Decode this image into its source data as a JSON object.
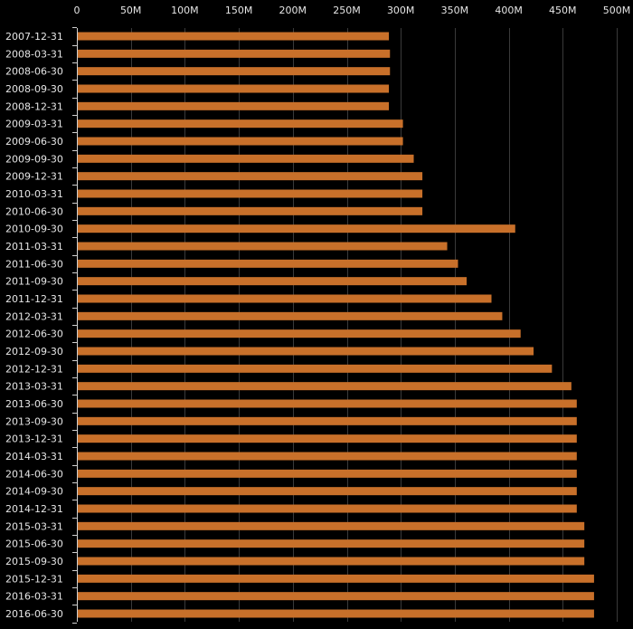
{
  "chart_data": {
    "type": "bar",
    "orientation": "horizontal",
    "title": "",
    "xlabel": "",
    "ylabel": "",
    "x_axis_position": "top",
    "grid": true,
    "legend": "none",
    "bar_color": "#c8702a",
    "background_color": "#000000",
    "text_color": "#e6e6e6",
    "xlim": [
      0,
      500000000
    ],
    "x_ticks": [
      0,
      50000000,
      100000000,
      150000000,
      200000000,
      250000000,
      300000000,
      350000000,
      400000000,
      450000000,
      500000000
    ],
    "x_tick_labels": [
      "0",
      "50M",
      "100M",
      "150M",
      "200M",
      "250M",
      "300M",
      "350M",
      "400M",
      "450M",
      "500M"
    ],
    "categories": [
      "2007-12-31",
      "2008-03-31",
      "2008-06-30",
      "2008-09-30",
      "2008-12-31",
      "2009-03-31",
      "2009-06-30",
      "2009-09-30",
      "2009-12-31",
      "2010-03-31",
      "2010-06-30",
      "2010-09-30",
      "2011-03-31",
      "2011-06-30",
      "2011-09-30",
      "2011-12-31",
      "2012-03-31",
      "2012-06-30",
      "2012-09-30",
      "2012-12-31",
      "2013-03-31",
      "2013-06-30",
      "2013-09-30",
      "2013-12-31",
      "2014-03-31",
      "2014-06-30",
      "2014-09-30",
      "2014-12-31",
      "2015-03-31",
      "2015-06-30",
      "2015-09-30",
      "2015-12-31",
      "2016-03-31",
      "2016-06-30"
    ],
    "values": [
      289000000,
      290000000,
      290000000,
      289000000,
      289000000,
      302000000,
      302000000,
      312000000,
      320000000,
      320000000,
      320000000,
      406000000,
      343000000,
      353000000,
      361000000,
      384000000,
      394000000,
      411000000,
      423000000,
      440000000,
      458000000,
      463000000,
      463000000,
      463000000,
      463000000,
      463000000,
      463000000,
      463000000,
      470000000,
      470000000,
      470000000,
      479000000,
      479000000,
      479000000
    ]
  }
}
